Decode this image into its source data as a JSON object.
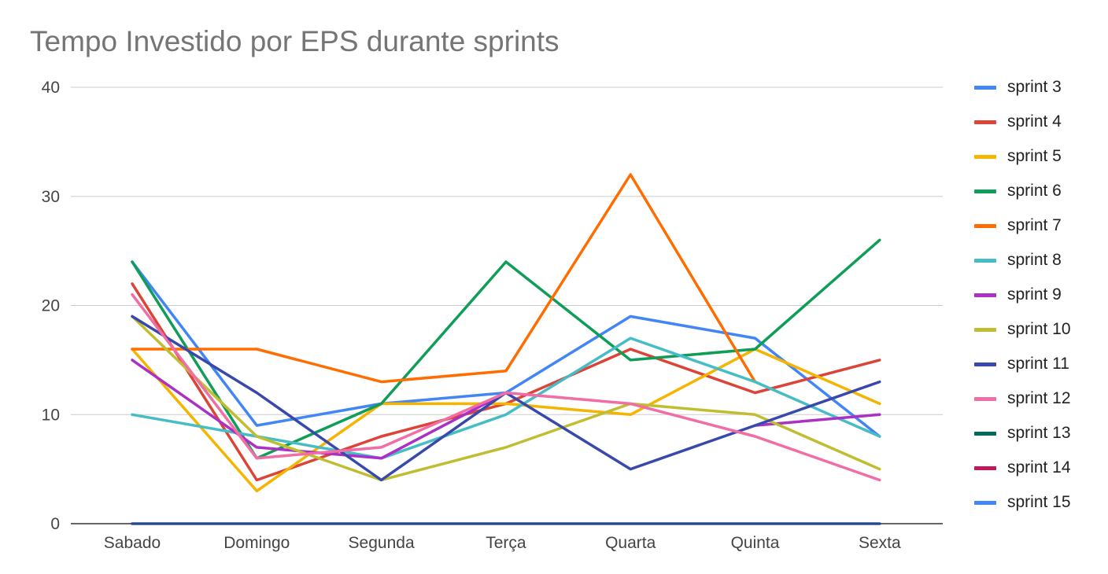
{
  "chart_data": {
    "type": "line",
    "title": "Tempo Investido por EPS durante sprints",
    "xlabel": "",
    "ylabel": "",
    "categories": [
      "Sabado",
      "Domingo",
      "Segunda",
      "Terça",
      "Quarta",
      "Quinta",
      "Sexta"
    ],
    "ylim": [
      0,
      40
    ],
    "yticks": [
      0,
      10,
      20,
      30,
      40
    ],
    "grid": true,
    "legend_position": "right",
    "series": [
      {
        "name": "sprint 3",
        "color": "#4285F4",
        "values": [
          24,
          9,
          11,
          12,
          19,
          17,
          8
        ]
      },
      {
        "name": "sprint 4",
        "color": "#DB4437",
        "values": [
          22,
          4,
          8,
          11,
          16,
          12,
          15
        ]
      },
      {
        "name": "sprint 5",
        "color": "#F4B400",
        "values": [
          16,
          3,
          11,
          11,
          10,
          16,
          11
        ]
      },
      {
        "name": "sprint 6",
        "color": "#0F9D58",
        "values": [
          24,
          6,
          11,
          24,
          15,
          16,
          26
        ]
      },
      {
        "name": "sprint 7",
        "color": "#FF6D00",
        "values": [
          16,
          16,
          13,
          14,
          32,
          13,
          null
        ]
      },
      {
        "name": "sprint 8",
        "color": "#46BDC6",
        "values": [
          10,
          8,
          6,
          10,
          17,
          13,
          8
        ]
      },
      {
        "name": "sprint 9",
        "color": "#AB30C4",
        "values": [
          15,
          7,
          6,
          12,
          null,
          9,
          10
        ]
      },
      {
        "name": "sprint 10",
        "color": "#C0BE30",
        "values": [
          19,
          8,
          4,
          7,
          11,
          10,
          5
        ]
      },
      {
        "name": "sprint 11",
        "color": "#3949AB",
        "values": [
          19,
          12,
          4,
          12,
          5,
          9,
          13
        ]
      },
      {
        "name": "sprint 12",
        "color": "#F06DA5",
        "values": [
          21,
          6,
          7,
          12,
          11,
          8,
          4
        ]
      },
      {
        "name": "sprint 13",
        "color": "#00695C",
        "values": [
          0,
          0,
          0,
          0,
          0,
          0,
          0
        ]
      },
      {
        "name": "sprint 14",
        "color": "#C2185B",
        "values": [
          0,
          0,
          0,
          0,
          0,
          0,
          0
        ]
      },
      {
        "name": "sprint 15",
        "color": "#4285F4",
        "values": [
          0,
          0,
          0,
          0,
          0,
          0,
          0
        ]
      }
    ]
  }
}
